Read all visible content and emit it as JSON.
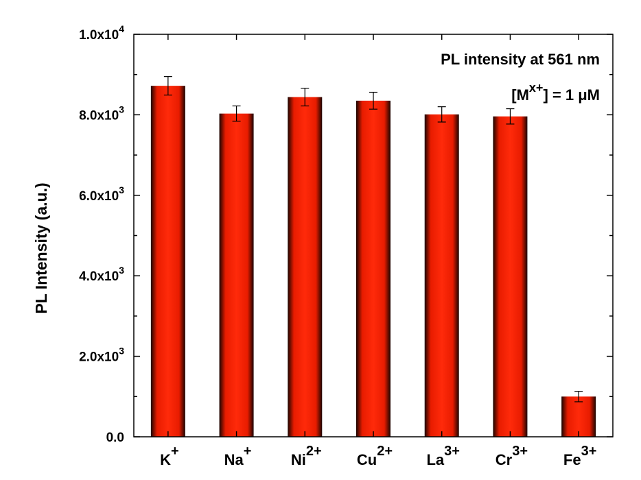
{
  "chart_data": {
    "type": "bar",
    "title": "",
    "xlabel": "",
    "ylabel": "PL Intensity (a.u.)",
    "ylim": [
      0,
      10000
    ],
    "yticks": [
      {
        "value": 0,
        "base": "0.0",
        "exp": ""
      },
      {
        "value": 2000,
        "base": "2.0x10",
        "exp": "3"
      },
      {
        "value": 4000,
        "base": "4.0x10",
        "exp": "3"
      },
      {
        "value": 6000,
        "base": "6.0x10",
        "exp": "3"
      },
      {
        "value": 8000,
        "base": "8.0x10",
        "exp": "3"
      },
      {
        "value": 10000,
        "base": "1.0x10",
        "exp": "4"
      }
    ],
    "categories": [
      {
        "base": "K",
        "sup": "+"
      },
      {
        "base": "Na",
        "sup": "+"
      },
      {
        "base": "Ni",
        "sup": "2+"
      },
      {
        "base": "Cu",
        "sup": "2+"
      },
      {
        "base": "La",
        "sup": "3+"
      },
      {
        "base": "Cr",
        "sup": "3+"
      },
      {
        "base": "Fe",
        "sup": "3+"
      }
    ],
    "values": [
      8720,
      8030,
      8440,
      8350,
      8010,
      7960,
      1000
    ],
    "errors": [
      230,
      190,
      220,
      210,
      190,
      190,
      130
    ],
    "annotations": {
      "line1": "PL intensity at 561 nm",
      "line2_prefix": "[M",
      "line2_sup": "x+",
      "line2_suffix": "] = 1 μM"
    },
    "colors": {
      "bar_light": "#ff2a0a",
      "bar_mid": "#e81c00",
      "bar_dark": "#1a0400",
      "axis": "#000000"
    }
  }
}
